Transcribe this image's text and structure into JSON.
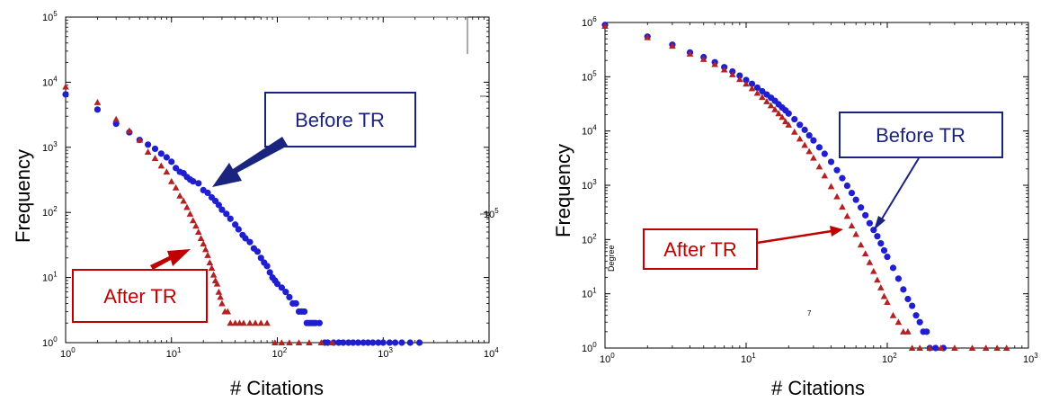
{
  "chart_data": [
    {
      "type": "scatter",
      "title": "",
      "xlabel": "# Citations",
      "ylabel": "Frequency",
      "xscale": "log",
      "yscale": "log",
      "xlim": [
        1,
        10000
      ],
      "ylim": [
        1,
        100000
      ],
      "x_ticks": [
        {
          "base": "10",
          "exp": "0"
        },
        {
          "base": "10",
          "exp": "1"
        },
        {
          "base": "10",
          "exp": "2"
        },
        {
          "base": "10",
          "exp": "3"
        },
        {
          "base": "10",
          "exp": "4"
        }
      ],
      "y_ticks": [
        {
          "base": "10",
          "exp": "0"
        },
        {
          "base": "10",
          "exp": "1"
        },
        {
          "base": "10",
          "exp": "2"
        },
        {
          "base": "10",
          "exp": "3"
        },
        {
          "base": "10",
          "exp": "4"
        },
        {
          "base": "10",
          "exp": "5"
        }
      ],
      "stray_label": {
        "base": "10",
        "exp": "5"
      },
      "grid": false,
      "series": [
        {
          "name": "Before TR",
          "marker": "circle",
          "color": "#1f1fcf",
          "points": [
            [
              1,
              6500
            ],
            [
              2,
              3800
            ],
            [
              3,
              2300
            ],
            [
              4,
              1700
            ],
            [
              5,
              1300
            ],
            [
              6,
              1100
            ],
            [
              7,
              950
            ],
            [
              8,
              800
            ],
            [
              9,
              700
            ],
            [
              10,
              600
            ],
            [
              11,
              480
            ],
            [
              12,
              420
            ],
            [
              13,
              400
            ],
            [
              14,
              350
            ],
            [
              15,
              320
            ],
            [
              16,
              300
            ],
            [
              18,
              280
            ],
            [
              20,
              220
            ],
            [
              22,
              200
            ],
            [
              24,
              170
            ],
            [
              26,
              150
            ],
            [
              28,
              130
            ],
            [
              30,
              110
            ],
            [
              33,
              95
            ],
            [
              36,
              80
            ],
            [
              40,
              65
            ],
            [
              43,
              55
            ],
            [
              47,
              45
            ],
            [
              50,
              40
            ],
            [
              55,
              35
            ],
            [
              60,
              28
            ],
            [
              65,
              25
            ],
            [
              70,
              20
            ],
            [
              75,
              17
            ],
            [
              80,
              15
            ],
            [
              85,
              12
            ],
            [
              90,
              10
            ],
            [
              95,
              9
            ],
            [
              100,
              8
            ],
            [
              110,
              7
            ],
            [
              120,
              6
            ],
            [
              130,
              5
            ],
            [
              140,
              4
            ],
            [
              150,
              4
            ],
            [
              160,
              3
            ],
            [
              170,
              3
            ],
            [
              180,
              3
            ],
            [
              190,
              2
            ],
            [
              200,
              2
            ],
            [
              210,
              2
            ],
            [
              220,
              2
            ],
            [
              230,
              2
            ],
            [
              250,
              2
            ],
            [
              280,
              1
            ],
            [
              300,
              1
            ],
            [
              340,
              1
            ],
            [
              380,
              1
            ],
            [
              420,
              1
            ],
            [
              470,
              1
            ],
            [
              520,
              1
            ],
            [
              580,
              1
            ],
            [
              650,
              1
            ],
            [
              720,
              1
            ],
            [
              800,
              1
            ],
            [
              900,
              1
            ],
            [
              1000,
              1
            ],
            [
              1150,
              1
            ],
            [
              1300,
              1
            ],
            [
              1500,
              1
            ],
            [
              1800,
              1
            ],
            [
              2200,
              1
            ]
          ]
        },
        {
          "name": "After TR",
          "marker": "triangle",
          "color": "#b22222",
          "points": [
            [
              1,
              8500
            ],
            [
              2,
              4900
            ],
            [
              3,
              2700
            ],
            [
              4,
              1800
            ],
            [
              5,
              1300
            ],
            [
              6,
              850
            ],
            [
              7,
              680
            ],
            [
              8,
              520
            ],
            [
              9,
              420
            ],
            [
              10,
              300
            ],
            [
              11,
              240
            ],
            [
              12,
              180
            ],
            [
              13,
              150
            ],
            [
              14,
              120
            ],
            [
              15,
              95
            ],
            [
              16,
              75
            ],
            [
              17,
              62
            ],
            [
              18,
              50
            ],
            [
              19,
              40
            ],
            [
              20,
              33
            ],
            [
              21,
              27
            ],
            [
              22,
              22
            ],
            [
              23,
              17
            ],
            [
              24,
              14
            ],
            [
              25,
              11
            ],
            [
              26,
              9
            ],
            [
              27,
              8
            ],
            [
              28,
              6
            ],
            [
              29,
              5
            ],
            [
              30,
              4
            ],
            [
              32,
              3
            ],
            [
              34,
              3
            ],
            [
              36,
              2
            ],
            [
              40,
              2
            ],
            [
              44,
              2
            ],
            [
              48,
              2
            ],
            [
              55,
              2
            ],
            [
              62,
              2
            ],
            [
              70,
              2
            ],
            [
              80,
              2
            ],
            [
              95,
              1
            ],
            [
              110,
              1
            ],
            [
              130,
              1
            ],
            [
              160,
              1
            ],
            [
              200,
              1
            ],
            [
              260,
              1
            ],
            [
              330,
              1
            ]
          ]
        }
      ],
      "annotations": [
        {
          "label": "Before TR",
          "color": "#1a237e"
        },
        {
          "label": "After TR",
          "color": "#c00000"
        }
      ]
    },
    {
      "type": "scatter",
      "title": "",
      "xlabel": "# Citations",
      "ylabel": "Frequency",
      "xscale": "log",
      "yscale": "log",
      "xlim": [
        1,
        1000
      ],
      "ylim": [
        1,
        1000000
      ],
      "x_ticks": [
        {
          "base": "10",
          "exp": "0"
        },
        {
          "base": "10",
          "exp": "1"
        },
        {
          "base": "10",
          "exp": "2"
        },
        {
          "base": "10",
          "exp": "3"
        }
      ],
      "y_ticks": [
        {
          "base": "10",
          "exp": "0"
        },
        {
          "base": "10",
          "exp": "1"
        },
        {
          "base": "10",
          "exp": "2"
        },
        {
          "base": "10",
          "exp": "3"
        },
        {
          "base": "10",
          "exp": "4"
        },
        {
          "base": "10",
          "exp": "5"
        },
        {
          "base": "10",
          "exp": "6"
        }
      ],
      "stray_labels": [
        "Degree",
        "7"
      ],
      "grid": false,
      "series": [
        {
          "name": "Before TR",
          "marker": "circle",
          "color": "#1f1fcf",
          "points": [
            [
              1,
              900000
            ],
            [
              2,
              550000
            ],
            [
              3,
              390000
            ],
            [
              4,
              280000
            ],
            [
              5,
              230000
            ],
            [
              6,
              185000
            ],
            [
              7,
              150000
            ],
            [
              8,
              125000
            ],
            [
              9,
              105000
            ],
            [
              10,
              87000
            ],
            [
              11,
              74000
            ],
            [
              12,
              63000
            ],
            [
              13,
              54000
            ],
            [
              14,
              47000
            ],
            [
              15,
              41000
            ],
            [
              16,
              36000
            ],
            [
              17,
              31000
            ],
            [
              18,
              27000
            ],
            [
              19,
              24000
            ],
            [
              20,
              21000
            ],
            [
              22,
              16500
            ],
            [
              24,
              13000
            ],
            [
              26,
              10500
            ],
            [
              28,
              8300
            ],
            [
              30,
              6700
            ],
            [
              33,
              5000
            ],
            [
              36,
              3800
            ],
            [
              40,
              2700
            ],
            [
              44,
              1900
            ],
            [
              48,
              1350
            ],
            [
              52,
              980
            ],
            [
              56,
              720
            ],
            [
              60,
              540
            ],
            [
              65,
              390
            ],
            [
              70,
              280
            ],
            [
              75,
              200
            ],
            [
              80,
              150
            ],
            [
              85,
              115
            ],
            [
              90,
              85
            ],
            [
              95,
              63
            ],
            [
              100,
              48
            ],
            [
              110,
              30
            ],
            [
              120,
              19
            ],
            [
              130,
              12
            ],
            [
              140,
              8
            ],
            [
              150,
              6
            ],
            [
              160,
              4
            ],
            [
              170,
              3
            ],
            [
              180,
              2
            ],
            [
              190,
              2
            ],
            [
              200,
              1
            ],
            [
              220,
              1
            ],
            [
              250,
              1
            ]
          ]
        },
        {
          "name": "After TR",
          "marker": "triangle",
          "color": "#b22222",
          "points": [
            [
              1,
              860000
            ],
            [
              2,
              530000
            ],
            [
              3,
              370000
            ],
            [
              4,
              265000
            ],
            [
              5,
              210000
            ],
            [
              6,
              170000
            ],
            [
              7,
              135000
            ],
            [
              8,
              110000
            ],
            [
              9,
              90000
            ],
            [
              10,
              74000
            ],
            [
              11,
              61000
            ],
            [
              12,
              50000
            ],
            [
              13,
              42000
            ],
            [
              14,
              35000
            ],
            [
              15,
              29500
            ],
            [
              16,
              25000
            ],
            [
              17,
              21000
            ],
            [
              18,
              18000
            ],
            [
              19,
              15000
            ],
            [
              20,
              13000
            ],
            [
              22,
              9600
            ],
            [
              24,
              7200
            ],
            [
              26,
              5500
            ],
            [
              28,
              4200
            ],
            [
              30,
              3200
            ],
            [
              33,
              2200
            ],
            [
              36,
              1500
            ],
            [
              40,
              950
            ],
            [
              44,
              620
            ],
            [
              48,
              400
            ],
            [
              52,
              270
            ],
            [
              56,
              180
            ],
            [
              60,
              125
            ],
            [
              65,
              80
            ],
            [
              70,
              55
            ],
            [
              75,
              38
            ],
            [
              80,
              26
            ],
            [
              85,
              18
            ],
            [
              90,
              13
            ],
            [
              95,
              9
            ],
            [
              100,
              7
            ],
            [
              110,
              4
            ],
            [
              120,
              3
            ],
            [
              130,
              2
            ],
            [
              140,
              2
            ],
            [
              150,
              1
            ],
            [
              170,
              1
            ],
            [
              200,
              1
            ],
            [
              240,
              1
            ],
            [
              300,
              1
            ],
            [
              400,
              1
            ],
            [
              500,
              1
            ],
            [
              600,
              1
            ],
            [
              700,
              1
            ]
          ]
        }
      ],
      "annotations": [
        {
          "label": "Before TR",
          "color": "#1a237e"
        },
        {
          "label": "After TR",
          "color": "#c00000"
        }
      ]
    }
  ]
}
